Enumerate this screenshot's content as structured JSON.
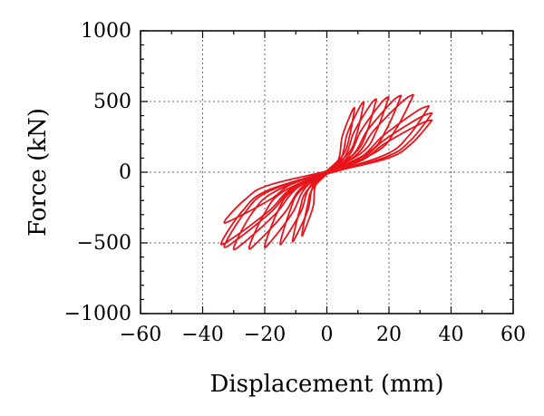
{
  "chart_data": {
    "type": "line",
    "xlabel": "Displacement (mm)",
    "ylabel": "Force (kN)",
    "xlim": [
      -60,
      60
    ],
    "ylim": [
      -1000,
      1000
    ],
    "x_ticks": [
      -60,
      -40,
      -20,
      0,
      20,
      40,
      60
    ],
    "x_tick_labels": [
      "−60",
      "−40",
      "−20",
      "0",
      "20",
      "40",
      "60"
    ],
    "y_ticks": [
      -1000,
      -500,
      0,
      500,
      1000
    ],
    "y_tick_labels": [
      "−1000",
      "−500",
      "0",
      "500",
      "1000"
    ],
    "grid": true,
    "grid_style": "dotted",
    "legend": "none",
    "line_color": "#e8141b",
    "loops": [
      {
        "peak_pos": [
          9,
          460
        ],
        "peak_neg": [
          -8,
          -440
        ]
      },
      {
        "peak_pos": [
          12,
          500
        ],
        "peak_neg": [
          -11,
          -480
        ]
      },
      {
        "peak_pos": [
          16,
          520
        ],
        "peak_neg": [
          -15,
          -500
        ]
      },
      {
        "peak_pos": [
          20,
          535
        ],
        "peak_neg": [
          -20,
          -520
        ]
      },
      {
        "peak_pos": [
          24,
          545
        ],
        "peak_neg": [
          -25,
          -530
        ]
      },
      {
        "peak_pos": [
          28,
          550
        ],
        "peak_neg": [
          -30,
          -535
        ]
      },
      {
        "peak_pos": [
          33,
          470
        ],
        "peak_neg": [
          -33,
          -520
        ]
      },
      {
        "peak_pos": [
          34,
          420
        ],
        "peak_neg": [
          -34,
          -500
        ]
      },
      {
        "peak_pos": [
          34,
          370
        ],
        "peak_neg": [
          -33,
          -350
        ]
      }
    ]
  }
}
